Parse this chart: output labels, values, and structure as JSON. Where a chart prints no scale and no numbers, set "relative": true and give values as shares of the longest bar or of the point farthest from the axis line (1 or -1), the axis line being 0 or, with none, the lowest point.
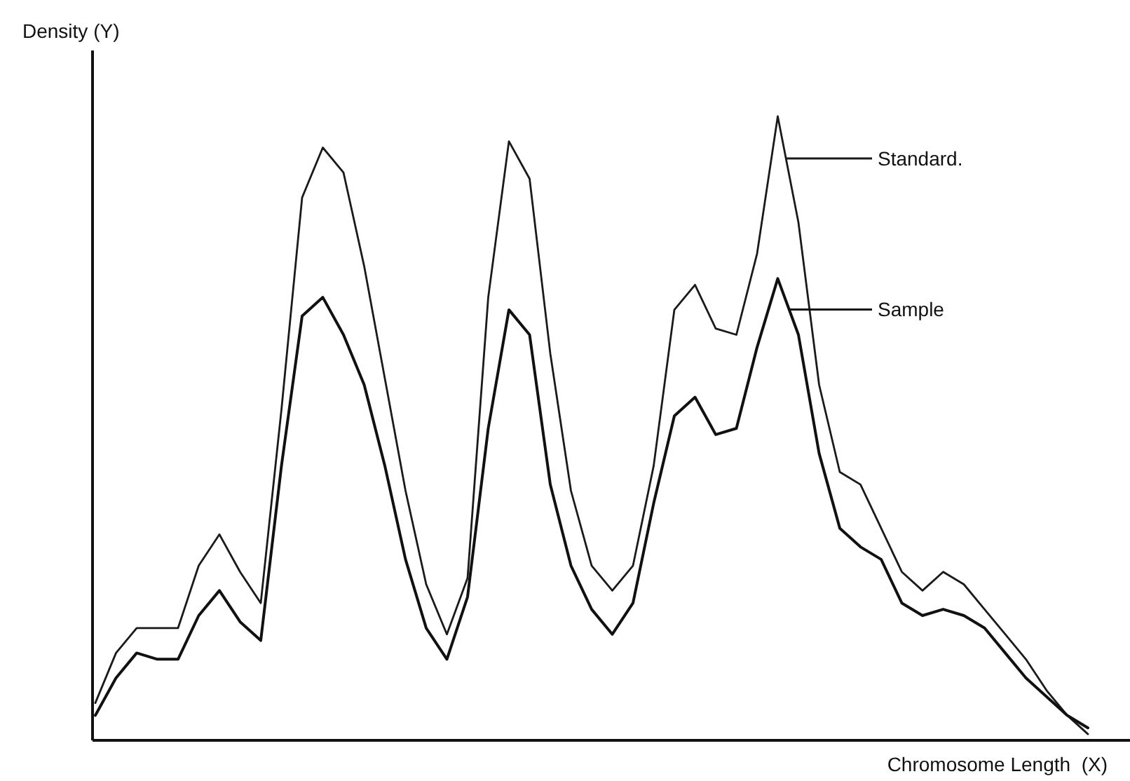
{
  "chart_data": {
    "type": "line",
    "relative": true,
    "legend": "top right",
    "xlabel": "Chromosome Length  (X)",
    "ylabel": "Density (Y)",
    "categories": [
      null,
      null,
      null,
      null,
      null,
      null,
      null,
      null,
      null,
      null,
      null,
      null,
      null,
      null,
      null,
      null,
      null,
      null,
      null,
      null,
      null,
      null,
      null,
      null,
      null,
      null,
      null,
      null,
      null,
      null,
      null,
      null,
      null,
      null,
      null,
      null,
      null,
      null,
      null,
      null,
      null,
      null,
      null,
      null,
      null,
      null,
      null,
      null,
      null
    ],
    "series": [
      {
        "name": "Standard.",
        "color": "#1a1a1a",
        "values": [
          0.06,
          0.14,
          0.18,
          0.18,
          0.18,
          0.28,
          0.33,
          0.27,
          0.22,
          0.53,
          0.87,
          0.95,
          0.91,
          0.76,
          0.58,
          0.4,
          0.25,
          0.17,
          0.26,
          0.71,
          0.96,
          0.9,
          0.62,
          0.4,
          0.28,
          0.24,
          0.28,
          0.44,
          0.69,
          0.73,
          0.66,
          0.65,
          0.78,
          1,
          0.83,
          0.57,
          0.43,
          0.41,
          0.34,
          0.27,
          0.24,
          0.27,
          0.25,
          0.21,
          0.17,
          0.13,
          0.08,
          0.04,
          0.01
        ]
      },
      {
        "name": "Sample",
        "color": "#111111",
        "values": [
          0.04,
          0.1,
          0.14,
          0.13,
          0.13,
          0.2,
          0.24,
          0.19,
          0.16,
          0.44,
          0.68,
          0.71,
          0.65,
          0.57,
          0.44,
          0.29,
          0.18,
          0.13,
          0.23,
          0.5,
          0.69,
          0.65,
          0.41,
          0.28,
          0.21,
          0.17,
          0.22,
          0.38,
          0.52,
          0.55,
          0.49,
          0.5,
          0.63,
          0.74,
          0.65,
          0.46,
          0.34,
          0.31,
          0.29,
          0.22,
          0.2,
          0.21,
          0.2,
          0.18,
          0.14,
          0.1,
          0.07,
          0.04,
          0.02
        ]
      }
    ]
  }
}
